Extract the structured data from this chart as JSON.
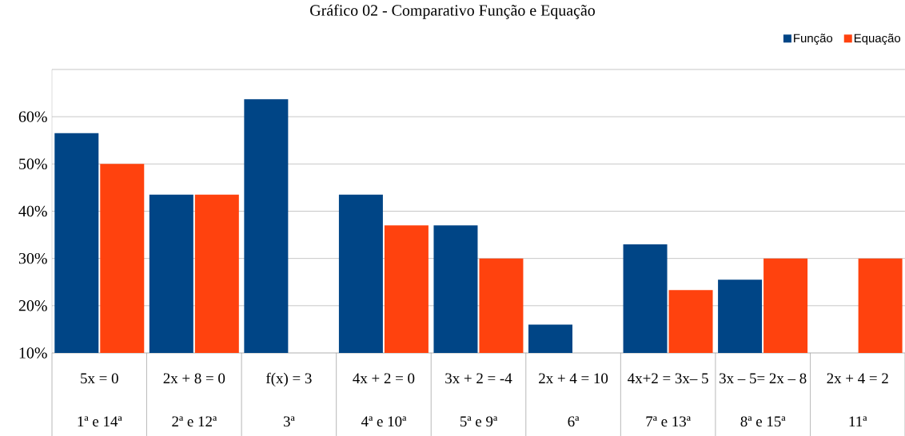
{
  "chart_data": {
    "type": "bar",
    "title": "Gráfico 02 - Comparativo Função e Equação",
    "categories": [
      "5x = 0",
      "2x + 8 = 0",
      "f(x) = 3",
      "4x + 2 = 0",
      "3x + 2 = -4",
      "2x + 4 = 10",
      "4x+2 = 3x– 5",
      "3x – 5= 2x – 8",
      "2x + 4 = 2"
    ],
    "series": [
      {
        "name": "Função",
        "color": "#004586",
        "values": [
          56.5,
          43.5,
          63.7,
          43.5,
          37,
          16,
          33,
          25.5,
          null
        ]
      },
      {
        "name": "Equação",
        "color": "#ff420e",
        "values": [
          50,
          43.5,
          null,
          37,
          30,
          null,
          23.3,
          30,
          30
        ]
      }
    ],
    "annotations": [
      "1ª e 14ª",
      "2ª e 12ª",
      "3ª",
      "4ª e 10ª",
      "5ª e 9ª",
      "6ª",
      "7ª e 13ª",
      "8ª e 15ª",
      "11ª"
    ],
    "ylim": [
      10,
      70
    ],
    "yticks": [
      {
        "value": 10,
        "label": "10%"
      },
      {
        "value": 20,
        "label": "20%"
      },
      {
        "value": 30,
        "label": "30%"
      },
      {
        "value": 40,
        "label": "40%"
      },
      {
        "value": 50,
        "label": "50%"
      },
      {
        "value": 60,
        "label": "60%"
      },
      {
        "value": 70,
        "label": null
      }
    ],
    "grid": "y",
    "legend": "top right"
  }
}
